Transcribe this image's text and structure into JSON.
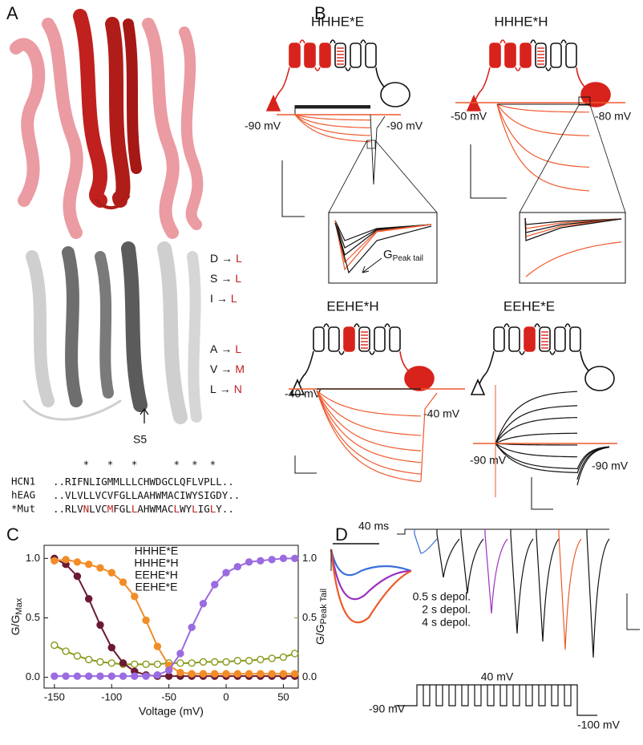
{
  "panel_labels": [
    "A",
    "B",
    "C",
    "D"
  ],
  "panel_a": {
    "mutations": [
      {
        "from": "D",
        "arrow": "→",
        "to": "L"
      },
      {
        "from": "S",
        "arrow": "→",
        "to": "L"
      },
      {
        "from": "I",
        "arrow": "→",
        "to": "L"
      },
      {
        "from": "A",
        "arrow": "→",
        "to": "L"
      },
      {
        "from": "V",
        "arrow": "→",
        "to": "M"
      },
      {
        "from": "L",
        "arrow": "→",
        "to": "N"
      }
    ],
    "mutation_color": "#c0201e",
    "arrow_label": "S5",
    "alignment": {
      "asterisks": "     *   *   *      *  *  *",
      "asterisk_color": "#c0201e",
      "rows": [
        {
          "name": "HCN1",
          "name_color": "#c0201e",
          "segments": [
            {
              "text": "..RIFNLIGMMLLLCHWDGCLQFLVPLL..",
              "color": "#111"
            }
          ]
        },
        {
          "name": "hEAG",
          "name_color": "#111",
          "segments": [
            {
              "text": "..VLVLLVCVFGLLAAHWMACIWYSIGDY..",
              "color": "#111"
            }
          ]
        },
        {
          "name": "*Mut",
          "name_color": "#111",
          "segments": [
            {
              "text": "..RLV",
              "color": "#111"
            },
            {
              "text": "N",
              "color": "#c0201e"
            },
            {
              "text": "LVC",
              "color": "#111"
            },
            {
              "text": "M",
              "color": "#c0201e"
            },
            {
              "text": "FGL",
              "color": "#111"
            },
            {
              "text": "L",
              "color": "#c0201e"
            },
            {
              "text": "AHWMAC",
              "color": "#111"
            },
            {
              "text": "L",
              "color": "#c0201e"
            },
            {
              "text": "WY",
              "color": "#111"
            },
            {
              "text": "L",
              "color": "#c0201e"
            },
            {
              "text": "IG",
              "color": "#111"
            },
            {
              "text": "L",
              "color": "#c0201e"
            },
            {
              "text": "Y..",
              "color": "#111"
            }
          ]
        }
      ]
    }
  },
  "panel_b": {
    "constructs": [
      {
        "name": "HHHE*E",
        "left_label": "-90 mV",
        "right_label": "-90 mV"
      },
      {
        "name": "HHHE*H",
        "left_label": "-50 mV",
        "right_label": "-80 mV"
      },
      {
        "name": "EEHE*H",
        "left_label": "-40 mV",
        "right_label": "-40 mV"
      },
      {
        "name": "EEHE*E",
        "left_label": "-90 mV",
        "right_label": "-90 mV"
      }
    ],
    "inset_label": {
      "main": "G",
      "sub": "Peak tail"
    }
  },
  "chart_data": {
    "type": "line",
    "x_label": "Voltage (mV)",
    "y_label": {
      "main": "G/G",
      "sub": "Max"
    },
    "y2_label": {
      "main": "G/G",
      "sub": "Peak Tail"
    },
    "y2_label_color": "#8a9a1c",
    "x": [
      -150,
      -140,
      -130,
      -120,
      -110,
      -100,
      -90,
      -80,
      -70,
      -60,
      -50,
      -40,
      -30,
      -20,
      -10,
      0,
      10,
      20,
      30,
      40,
      50,
      60
    ],
    "series": [
      {
        "name": "HHHE*E",
        "color": "#8a9a1c",
        "axis": "y2",
        "marker": "open",
        "values": [
          0.27,
          0.22,
          0.18,
          0.15,
          0.13,
          0.12,
          0.11,
          0.11,
          0.11,
          0.11,
          0.12,
          0.12,
          0.12,
          0.13,
          0.13,
          0.13,
          0.14,
          0.14,
          0.15,
          0.16,
          0.17,
          0.2
        ]
      },
      {
        "name": "HHHE*H",
        "color": "#6b1a33",
        "marker": "filled",
        "values": [
          1.0,
          0.95,
          0.85,
          0.66,
          0.44,
          0.25,
          0.12,
          0.05,
          0.02,
          0.01,
          0.01,
          0.01,
          0.01,
          0.01,
          0.01,
          0.01,
          0.01,
          0.01,
          0.01,
          0.01,
          0.01,
          0.01
        ]
      },
      {
        "name": "EEHE*H",
        "color": "#f28c28",
        "marker": "filled",
        "values": [
          0.98,
          0.99,
          0.97,
          0.95,
          0.92,
          0.88,
          0.8,
          0.68,
          0.48,
          0.26,
          0.1,
          0.04,
          0.03,
          0.03,
          0.03,
          0.03,
          0.03,
          0.03,
          0.03,
          0.03,
          0.03,
          0.03
        ]
      },
      {
        "name": "EEHE*E",
        "color": "#9b6be0",
        "marker": "filled",
        "values": [
          0.01,
          0.01,
          0.01,
          0.01,
          0.01,
          0.01,
          0.01,
          0.01,
          0.01,
          0.02,
          0.06,
          0.2,
          0.42,
          0.62,
          0.78,
          0.88,
          0.93,
          0.97,
          0.98,
          0.99,
          1.0,
          1.0
        ]
      }
    ],
    "xlim": [
      -159,
      63
    ],
    "ylim": [
      -0.09,
      1.11
    ],
    "y2lim": [
      -0.09,
      1.11
    ],
    "xticks": [
      -150,
      -100,
      -50,
      0,
      50
    ],
    "yticks": [
      {
        "value": 0,
        "label": "0.0"
      },
      0.5,
      {
        "value": 1,
        "label": "1.0"
      }
    ],
    "y2ticks": [
      {
        "value": 0,
        "label": "0.0"
      },
      0.5,
      {
        "value": 1,
        "label": "1.0"
      }
    ],
    "legend": "upper-left",
    "grid": false
  },
  "panel_d": {
    "time_scale": "40 ms",
    "legend": [
      {
        "text": "0.5 s depol.",
        "color": "#3a6fd8"
      },
      {
        "text": "2 s depol.",
        "color": "#9a2fc0"
      },
      {
        "text": "4 s depol.",
        "color": "#ec5a28"
      }
    ],
    "step_label": "40 mV",
    "hold_label": "-90 mV",
    "tail_label": "-100 mV"
  }
}
